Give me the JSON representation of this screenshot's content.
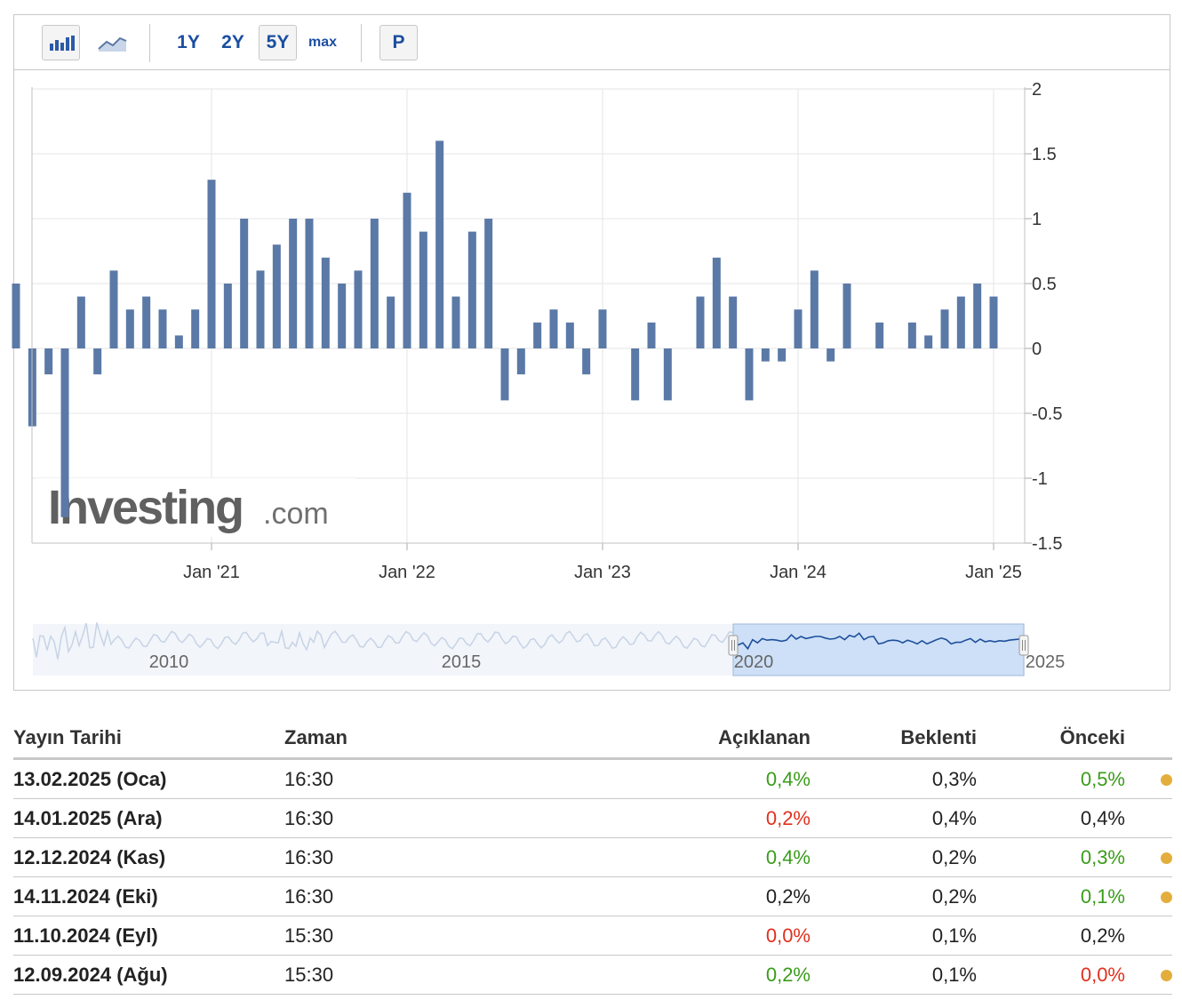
{
  "toolbar": {
    "bar_icon": "bar-chart-icon",
    "line_icon": "line-chart-icon",
    "range_1y": "1Y",
    "range_2y": "2Y",
    "range_5y": "5Y",
    "range_max": "max",
    "p_label": "P"
  },
  "watermark": {
    "brand": "Investing",
    "suffix": ".com"
  },
  "colors": {
    "bar": "#5b79a6",
    "navigator_line": "#1f4f9c",
    "green": "#3a9c1a",
    "red": "#e0301e",
    "dot": "#e3ae3c"
  },
  "chart_data": {
    "type": "bar",
    "values": [
      0.5,
      -0.6,
      -0.2,
      -1.3,
      0.4,
      -0.2,
      0.6,
      0.3,
      0.4,
      0.3,
      0.1,
      0.3,
      1.3,
      0.5,
      1.0,
      0.6,
      0.8,
      1.0,
      1.0,
      0.7,
      0.5,
      0.6,
      1.0,
      0.4,
      1.2,
      0.9,
      1.6,
      0.4,
      0.9,
      1.0,
      -0.4,
      -0.2,
      0.2,
      0.3,
      0.2,
      -0.2,
      0.3,
      0.0,
      -0.4,
      0.2,
      -0.4,
      0.0,
      0.4,
      0.7,
      0.4,
      -0.4,
      -0.1,
      -0.1,
      0.3,
      0.6,
      -0.1,
      0.5,
      0.0,
      0.2,
      0.0,
      0.2,
      0.1,
      0.3,
      0.4,
      0.5,
      0.4
    ],
    "first_period": "Jan '20",
    "x_tick_labels": [
      "Jan '21",
      "Jan '22",
      "Jan '23",
      "Jan '24",
      "Jan '25"
    ],
    "y_ticks": [
      2,
      1.5,
      1,
      0.5,
      0,
      -0.5,
      -1,
      -1.5
    ],
    "ylim": [
      -1.5,
      2
    ],
    "grid": true,
    "navigator": {
      "year_labels": [
        "2010",
        "2015",
        "2020",
        "2025"
      ],
      "selected_range": [
        "2020",
        "2025"
      ]
    }
  },
  "table": {
    "headers": {
      "date": "Yayın Tarihi",
      "time": "Zaman",
      "actual": "Açıklanan",
      "forecast": "Beklenti",
      "previous": "Önceki"
    },
    "rows": [
      {
        "date": "13.02.2025 (Oca)",
        "time": "16:30",
        "actual": "0,4%",
        "actual_color": "green",
        "forecast": "0,3%",
        "previous": "0,5%",
        "previous_color": "green",
        "revised": true
      },
      {
        "date": "14.01.2025 (Ara)",
        "time": "16:30",
        "actual": "0,2%",
        "actual_color": "red",
        "forecast": "0,4%",
        "previous": "0,4%",
        "previous_color": "black",
        "revised": false
      },
      {
        "date": "12.12.2024 (Kas)",
        "time": "16:30",
        "actual": "0,4%",
        "actual_color": "green",
        "forecast": "0,2%",
        "previous": "0,3%",
        "previous_color": "green",
        "revised": true
      },
      {
        "date": "14.11.2024 (Eki)",
        "time": "16:30",
        "actual": "0,2%",
        "actual_color": "black",
        "forecast": "0,2%",
        "previous": "0,1%",
        "previous_color": "green",
        "revised": true
      },
      {
        "date": "11.10.2024 (Eyl)",
        "time": "15:30",
        "actual": "0,0%",
        "actual_color": "red",
        "forecast": "0,1%",
        "previous": "0,2%",
        "previous_color": "black",
        "revised": false
      },
      {
        "date": "12.09.2024 (Ağu)",
        "time": "15:30",
        "actual": "0,2%",
        "actual_color": "green",
        "forecast": "0,1%",
        "previous": "0,0%",
        "previous_color": "red",
        "revised": true
      }
    ]
  }
}
